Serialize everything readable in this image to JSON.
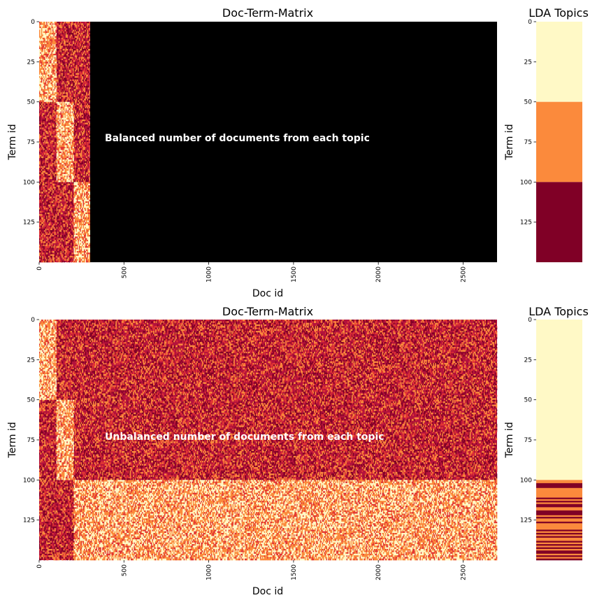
{
  "colors": {
    "background": "#ffffff",
    "annotation_text": "#ffffff",
    "axis": "#000000",
    "black_region": "#000000",
    "colormap_light": "#fff9c6",
    "colormap_orange": "#fb8a3c",
    "colormap_red": "#e23634",
    "colormap_crimson": "#b3123c",
    "colormap_darkred": "#800026"
  },
  "chart_data": [
    {
      "type": "heatmap",
      "title": "Doc-Term-Matrix",
      "xlabel": "Doc id",
      "ylabel": "Term id",
      "xlim": [
        0,
        2700
      ],
      "ylim": [
        150,
        0
      ],
      "xticks": [
        "0",
        "500",
        "1000",
        "1500",
        "2000",
        "2500"
      ],
      "yticks": [
        "0",
        "25",
        "50",
        "75",
        "100",
        "125"
      ],
      "annotation": "Balanced number of documents from each topic",
      "n_docs_nonzero": 300,
      "topic_blocks": [
        {
          "terms": [
            0,
            50
          ],
          "docs": [
            0,
            100
          ]
        },
        {
          "terms": [
            50,
            100
          ],
          "docs": [
            100,
            200
          ]
        },
        {
          "terms": [
            100,
            150
          ],
          "docs": [
            200,
            300
          ]
        }
      ],
      "empty_region": {
        "docs": [
          300,
          2700
        ],
        "color": "black"
      }
    },
    {
      "type": "heatmap",
      "title": "LDA Topics",
      "xlabel": "",
      "ylabel": "Term id",
      "ylim": [
        150,
        0
      ],
      "yticks": [
        "0",
        "25",
        "50",
        "75",
        "100",
        "125"
      ],
      "term_topics": [
        {
          "terms": [
            0,
            50
          ],
          "color": "light"
        },
        {
          "terms": [
            50,
            100
          ],
          "color": "orange"
        },
        {
          "terms": [
            100,
            150
          ],
          "color": "darkred"
        }
      ]
    },
    {
      "type": "heatmap",
      "title": "Doc-Term-Matrix",
      "xlabel": "Doc id",
      "ylabel": "Term id",
      "xlim": [
        0,
        2700
      ],
      "ylim": [
        150,
        0
      ],
      "xticks": [
        "0",
        "500",
        "1000",
        "1500",
        "2000",
        "2500"
      ],
      "yticks": [
        "0",
        "25",
        "50",
        "75",
        "100",
        "125"
      ],
      "annotation": "Unbalanced number of documents from each topic",
      "topic_blocks": [
        {
          "terms": [
            0,
            50
          ],
          "docs": [
            0,
            100
          ]
        },
        {
          "terms": [
            50,
            100
          ],
          "docs": [
            100,
            200
          ]
        },
        {
          "terms": [
            100,
            150
          ],
          "docs": [
            200,
            2700
          ]
        }
      ]
    },
    {
      "type": "heatmap",
      "title": "LDA Topics",
      "xlabel": "",
      "ylabel": "Term id",
      "ylim": [
        150,
        0
      ],
      "yticks": [
        "0",
        "25",
        "50",
        "75",
        "100",
        "125"
      ],
      "term_topics": [
        {
          "terms": [
            0,
            100
          ],
          "color": "light"
        },
        {
          "terms": [
            100,
            150
          ],
          "color": "mixed_orange_darkred"
        }
      ]
    }
  ]
}
